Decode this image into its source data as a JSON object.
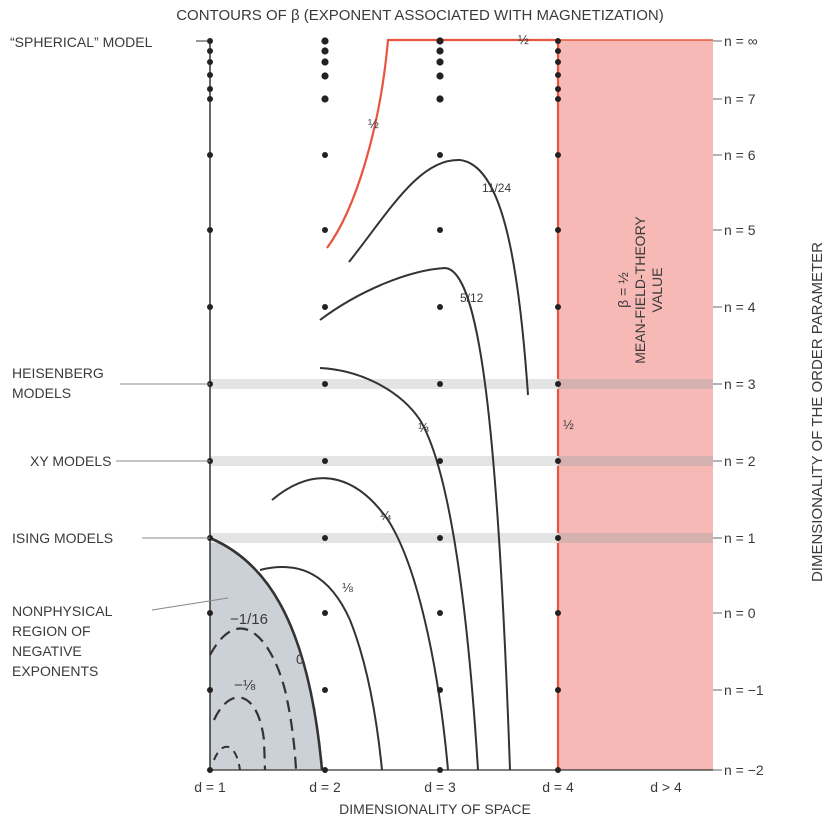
{
  "chart_data": {
    "type": "contour",
    "title": "CONTOURS OF β (EXPONENT ASSOCIATED WITH MAGNETIZATION)",
    "xlabel": "DIMENSIONALITY OF SPACE",
    "ylabel": "DIMENSIONALITY OF THE ORDER PARAMETER",
    "x_ticks": [
      "d = 1",
      "d = 2",
      "d = 3",
      "d = 4",
      "d > 4"
    ],
    "y_ticks": [
      "n = ∞",
      "n = 7",
      "n = 6",
      "n = 5",
      "n = 4",
      "n = 3",
      "n = 2",
      "n = 1",
      "n = 0",
      "n = −1",
      "n = −2"
    ],
    "model_labels": [
      {
        "text": "“SPHERICAL” MODEL",
        "n": "∞"
      },
      {
        "text": "HEISENBERG",
        "text2": "MODELS",
        "n": 3
      },
      {
        "text": "XY MODELS",
        "n": 2
      },
      {
        "text": "ISING MODELS",
        "n": 1
      }
    ],
    "nonphysical_label": [
      "NONPHYSICAL",
      "REGION OF",
      "NEGATIVE",
      "EXPONENTS"
    ],
    "mean_field_label": [
      "β = ½",
      "MEAN-FIELD-THEORY",
      "VALUE"
    ],
    "contour_labels": [
      "½",
      "½",
      "11/24",
      "5/12",
      "⅓",
      "¼",
      "⅛",
      "0",
      "−1/16",
      "−⅛",
      "½"
    ],
    "contours": [
      {
        "beta": "1/2",
        "d_min": 2,
        "d_max": 4
      },
      {
        "beta": "11/24"
      },
      {
        "beta": "5/12"
      },
      {
        "beta": "1/3"
      },
      {
        "beta": "1/4"
      },
      {
        "beta": "1/8"
      },
      {
        "beta": "0"
      },
      {
        "beta": "-1/16"
      },
      {
        "beta": "-1/8"
      }
    ],
    "mean_field_region": {
      "d_min": 4,
      "beta": "1/2"
    },
    "colors": {
      "mean_field": "#f7b9b6",
      "contour_half": "#e8543e",
      "nonphysical": "#ccd0d7",
      "band": "#e4e4e4",
      "line": "#333333"
    }
  }
}
